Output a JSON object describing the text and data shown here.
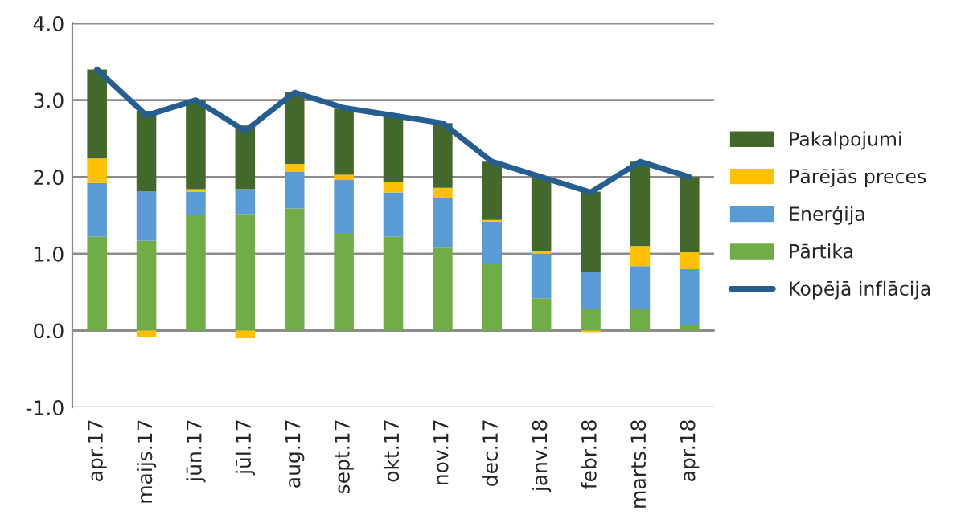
{
  "chart_data": {
    "type": "bar",
    "stacked": true,
    "categories": [
      "apr.17",
      "maijs.17",
      "jūn.17",
      "jūl.17",
      "aug.17",
      "sept.17",
      "okt.17",
      "nov.17",
      "dec.17",
      "janv.18",
      "febr.18",
      "marts.18",
      "apr.18"
    ],
    "series": [
      {
        "name": "Pārtika",
        "color": "#70ad47",
        "values": [
          1.22,
          1.17,
          1.5,
          1.52,
          1.59,
          1.27,
          1.22,
          1.08,
          0.87,
          0.42,
          0.28,
          0.28,
          0.07
        ]
      },
      {
        "name": "Enerģija",
        "color": "#5b9bd5",
        "values": [
          0.7,
          0.64,
          0.31,
          0.32,
          0.48,
          0.69,
          0.58,
          0.64,
          0.55,
          0.58,
          0.48,
          0.56,
          0.73
        ]
      },
      {
        "name": "Pārējās preces",
        "color": "#ffc000",
        "values": [
          0.32,
          -0.08,
          0.03,
          -0.1,
          0.1,
          0.07,
          0.14,
          0.14,
          0.02,
          0.04,
          -0.02,
          0.26,
          0.22
        ]
      },
      {
        "name": "Pakalpojumi",
        "color": "#43682b",
        "values": [
          1.16,
          1.05,
          1.16,
          0.83,
          0.93,
          0.86,
          0.85,
          0.84,
          0.76,
          0.96,
          1.05,
          1.1,
          0.98
        ]
      },
      {
        "name": "Kopējā inflācija",
        "type": "line",
        "color": "#255e91",
        "values": [
          3.4,
          2.8,
          3.0,
          2.6,
          3.1,
          2.9,
          2.8,
          2.7,
          2.2,
          2.0,
          1.8,
          2.2,
          2.0
        ]
      }
    ],
    "ylim": [
      -1.0,
      4.0
    ],
    "yticks": [
      {
        "value": -1,
        "label": "-1.0"
      },
      {
        "value": 0,
        "label": "0.0"
      },
      {
        "value": 1,
        "label": "1.0"
      },
      {
        "value": 2,
        "label": "2.0"
      },
      {
        "value": 3,
        "label": "3.0"
      },
      {
        "value": 4,
        "label": "4.0"
      }
    ],
    "grid": "y",
    "legend": "right"
  }
}
